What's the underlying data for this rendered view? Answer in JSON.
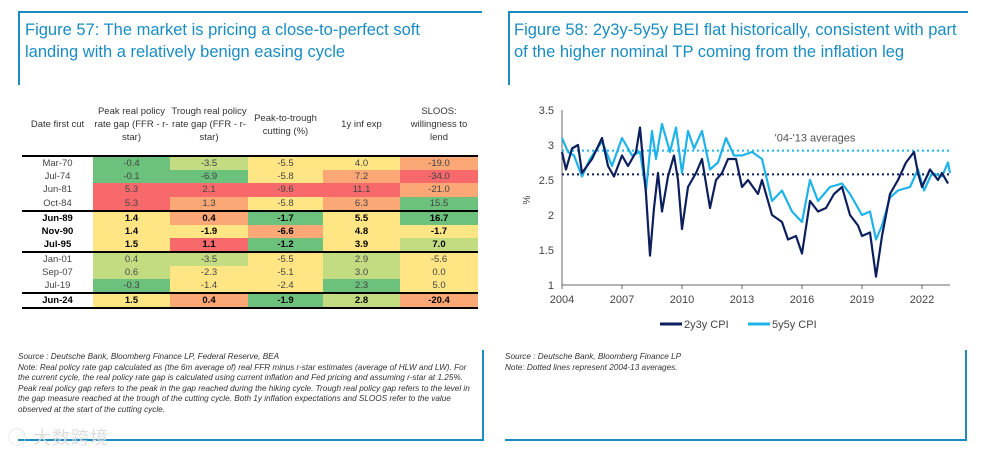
{
  "left": {
    "title": "Figure 57: The market is pricing a close-to-perfect soft landing with a relatively benign easing cycle",
    "headers": [
      "Date first cut",
      "Peak real policy rate gap (FFR - r-star)",
      "Trough real policy rate gap (FFR - r-star)",
      "Peak-to-trough cutting (%)",
      "1y inf exp",
      "SLOOS: willingness to lend"
    ],
    "colors": {
      "R": "#f8696b",
      "O": "#fba776",
      "Y": "#ffe583",
      "LG": "#c3db81",
      "G": "#6cc17c"
    },
    "rows": [
      {
        "date": "Mar-70",
        "bold": false,
        "vals": [
          "-0.4",
          "-3.5",
          "-5.5",
          "4.0",
          "-19.0"
        ],
        "c": [
          "G",
          "LG",
          "Y",
          "Y",
          "O"
        ]
      },
      {
        "date": "Jul-74",
        "bold": false,
        "vals": [
          "-0.1",
          "-6.9",
          "-5.8",
          "7.2",
          "-34.0"
        ],
        "c": [
          "G",
          "G",
          "Y",
          "O",
          "R"
        ]
      },
      {
        "date": "Jun-81",
        "bold": false,
        "vals": [
          "5.3",
          "2.1",
          "-9.6",
          "11.1",
          "-21.0"
        ],
        "c": [
          "R",
          "R",
          "R",
          "R",
          "O"
        ]
      },
      {
        "date": "Oct-84",
        "bold": false,
        "vals": [
          "5.3",
          "1.3",
          "-5.8",
          "6.3",
          "15.5"
        ],
        "c": [
          "R",
          "O",
          "Y",
          "O",
          "G"
        ]
      },
      {
        "date": "Jun-89",
        "bold": true,
        "vals": [
          "1.4",
          "0.4",
          "-1.7",
          "5.5",
          "16.7"
        ],
        "c": [
          "Y",
          "O",
          "G",
          "Y",
          "G"
        ]
      },
      {
        "date": "Nov-90",
        "bold": true,
        "vals": [
          "1.4",
          "-1.9",
          "-6.6",
          "4.8",
          "-1.7"
        ],
        "c": [
          "Y",
          "Y",
          "O",
          "Y",
          "Y"
        ]
      },
      {
        "date": "Jul-95",
        "bold": true,
        "vals": [
          "1.5",
          "1.1",
          "-1.2",
          "3.9",
          "7.0"
        ],
        "c": [
          "Y",
          "R",
          "G",
          "Y",
          "LG"
        ]
      },
      {
        "date": "Jan-01",
        "bold": false,
        "vals": [
          "0.4",
          "-3.5",
          "-5.5",
          "2.9",
          "-5.6"
        ],
        "c": [
          "LG",
          "LG",
          "Y",
          "LG",
          "Y"
        ]
      },
      {
        "date": "Sep-07",
        "bold": false,
        "vals": [
          "0.6",
          "-2.3",
          "-5.1",
          "3.0",
          "0.0"
        ],
        "c": [
          "LG",
          "Y",
          "Y",
          "LG",
          "Y"
        ]
      },
      {
        "date": "Jul-19",
        "bold": false,
        "vals": [
          "-0.3",
          "-1.4",
          "-2.4",
          "2.3",
          "5.0"
        ],
        "c": [
          "G",
          "Y",
          "Y",
          "G",
          "Y"
        ]
      },
      {
        "date": "Jun-24",
        "bold": true,
        "vals": [
          "1.5",
          "0.4",
          "-1.9",
          "2.8",
          "-20.4"
        ],
        "c": [
          "Y",
          "O",
          "G",
          "LG",
          "O"
        ]
      }
    ],
    "source": "Source : Deutsche Bank, Bloomberg Finance LP, Federal Reserve, BEA",
    "note": "Note: Real policy rate gap calculated as (the 6m average of) real FFR minus r-star estimates (average of HLW and LW). For the current cycle, the real policy rate gap is calculated using current inflation and Fed pricing and assuming r-star at 1.25%. Peak real policy gap refers to the peak in the gap reached during the hiking cycle. Trough real policy gap refers to the level in the gap measure reached at the trough of the cutting cycle. Both 1y inflation expectations and SLOOS refer to the value observed at the start of the cutting cycle.",
    "watermark": "大数跨境"
  },
  "right": {
    "title": "Figure 58: 2y3y-5y5y BEI flat historically, consistent with part of the higher nominal TP coming from the inflation leg",
    "source": "Source : Deutsche Bank, Bloomberg Finance LP",
    "note": "Note: Dotted lines represent 2004-13 averages."
  },
  "chart_data": {
    "type": "line",
    "ylabel": "%",
    "ylim": [
      1,
      3.5
    ],
    "xlim": [
      2004,
      2023.4
    ],
    "yticks": [
      "3.5",
      "3",
      "2.5",
      "2",
      "1.5",
      "1"
    ],
    "xticks": [
      "2004",
      "2007",
      "2010",
      "2013",
      "2016",
      "2019",
      "2022"
    ],
    "annotation": "'04-'13 averages",
    "legend_position": "bottom",
    "averages": [
      {
        "series": "2y3y CPI",
        "value": 2.58
      },
      {
        "series": "5y5y CPI",
        "value": 2.92
      }
    ],
    "series": [
      {
        "name": "2y3y CPI",
        "color": "#0c1f5c",
        "points": [
          [
            2004,
            2.9
          ],
          [
            2004.2,
            2.65
          ],
          [
            2004.5,
            2.95
          ],
          [
            2004.8,
            3.0
          ],
          [
            2005,
            2.6
          ],
          [
            2005.5,
            2.8
          ],
          [
            2006,
            3.1
          ],
          [
            2006.3,
            2.7
          ],
          [
            2006.6,
            2.55
          ],
          [
            2007,
            2.85
          ],
          [
            2007.3,
            2.7
          ],
          [
            2007.7,
            2.9
          ],
          [
            2007.9,
            3.25
          ],
          [
            2008.2,
            2.3
          ],
          [
            2008.4,
            1.42
          ],
          [
            2008.6,
            2.1
          ],
          [
            2008.8,
            2.6
          ],
          [
            2009,
            2.05
          ],
          [
            2009.3,
            2.55
          ],
          [
            2009.6,
            2.85
          ],
          [
            2009.8,
            2.5
          ],
          [
            2010,
            1.8
          ],
          [
            2010.3,
            2.4
          ],
          [
            2010.7,
            2.6
          ],
          [
            2011,
            2.8
          ],
          [
            2011.4,
            2.1
          ],
          [
            2011.7,
            2.5
          ],
          [
            2012,
            2.6
          ],
          [
            2012.3,
            2.8
          ],
          [
            2012.7,
            2.8
          ],
          [
            2013,
            2.4
          ],
          [
            2013.3,
            2.5
          ],
          [
            2013.8,
            2.3
          ],
          [
            2014,
            2.5
          ],
          [
            2014.5,
            2.0
          ],
          [
            2015,
            1.9
          ],
          [
            2015.3,
            1.65
          ],
          [
            2015.7,
            1.7
          ],
          [
            2016,
            1.45
          ],
          [
            2016.4,
            2.2
          ],
          [
            2016.8,
            2.05
          ],
          [
            2017.2,
            2.1
          ],
          [
            2017.6,
            2.3
          ],
          [
            2018,
            2.4
          ],
          [
            2018.4,
            2.0
          ],
          [
            2018.8,
            1.85
          ],
          [
            2019,
            1.7
          ],
          [
            2019.4,
            1.75
          ],
          [
            2019.7,
            1.12
          ],
          [
            2020,
            1.7
          ],
          [
            2020.4,
            2.3
          ],
          [
            2020.8,
            2.5
          ],
          [
            2021.2,
            2.75
          ],
          [
            2021.6,
            2.9
          ],
          [
            2021.8,
            2.6
          ],
          [
            2022,
            2.4
          ],
          [
            2022.4,
            2.65
          ],
          [
            2022.8,
            2.5
          ],
          [
            2023,
            2.6
          ],
          [
            2023.3,
            2.45
          ]
        ]
      },
      {
        "name": "5y5y CPI",
        "color": "#1fb3ea",
        "points": [
          [
            2004,
            3.1
          ],
          [
            2004.3,
            2.9
          ],
          [
            2004.6,
            2.85
          ],
          [
            2005,
            2.55
          ],
          [
            2005.4,
            2.8
          ],
          [
            2006,
            3.05
          ],
          [
            2006.5,
            2.7
          ],
          [
            2007,
            3.1
          ],
          [
            2007.5,
            2.85
          ],
          [
            2007.9,
            2.9
          ],
          [
            2008.2,
            2.35
          ],
          [
            2008.5,
            3.2
          ],
          [
            2008.7,
            2.8
          ],
          [
            2009,
            3.3
          ],
          [
            2009.4,
            2.9
          ],
          [
            2009.7,
            3.25
          ],
          [
            2010,
            2.6
          ],
          [
            2010.3,
            3.2
          ],
          [
            2010.6,
            2.95
          ],
          [
            2011,
            3.2
          ],
          [
            2011.4,
            2.65
          ],
          [
            2011.8,
            2.75
          ],
          [
            2012.2,
            3.1
          ],
          [
            2012.6,
            2.85
          ],
          [
            2013,
            2.85
          ],
          [
            2013.5,
            2.9
          ],
          [
            2014,
            2.8
          ],
          [
            2014.5,
            2.2
          ],
          [
            2015,
            2.35
          ],
          [
            2015.5,
            2.05
          ],
          [
            2016,
            1.9
          ],
          [
            2016.4,
            2.5
          ],
          [
            2016.8,
            2.2
          ],
          [
            2017.4,
            2.4
          ],
          [
            2018,
            2.45
          ],
          [
            2018.4,
            2.3
          ],
          [
            2019,
            2.0
          ],
          [
            2019.4,
            2.05
          ],
          [
            2019.7,
            1.65
          ],
          [
            2020,
            1.85
          ],
          [
            2020.4,
            2.25
          ],
          [
            2020.8,
            2.35
          ],
          [
            2021.4,
            2.4
          ],
          [
            2021.8,
            2.65
          ],
          [
            2022.1,
            2.35
          ],
          [
            2022.5,
            2.6
          ],
          [
            2023,
            2.55
          ],
          [
            2023.3,
            2.75
          ],
          [
            2023.4,
            2.6
          ]
        ]
      }
    ]
  }
}
